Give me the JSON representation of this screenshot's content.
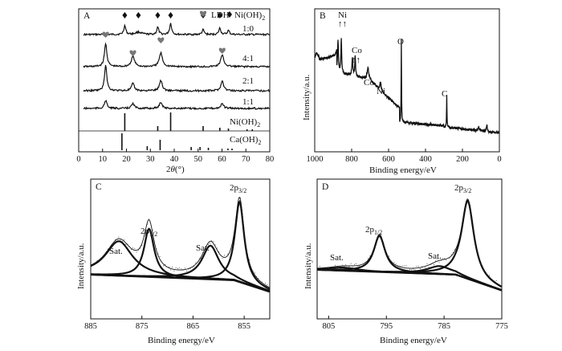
{
  "chart_data": [
    {
      "panel": "A",
      "type": "line",
      "xlabel": "2θ(°)",
      "ylabel": "",
      "xlim": [
        0,
        80
      ],
      "xticks": [
        0,
        10,
        20,
        30,
        40,
        50,
        60,
        70,
        80
      ],
      "legend": [
        {
          "marker": "heart",
          "label": "LDH"
        },
        {
          "marker": "diamond",
          "label": "Ni(OH)2"
        }
      ],
      "series": [
        {
          "name": "1:0",
          "peaks": [
            19.3,
            33.1,
            38.5,
            52.1,
            59.1,
            62.7
          ]
        },
        {
          "name": "4:1",
          "peaks": [
            11.3,
            22.7,
            34.4,
            60.1
          ]
        },
        {
          "name": "2:1",
          "peaks": [
            11.3,
            22.7,
            34.4,
            60.1
          ]
        },
        {
          "name": "1:1",
          "peaks": [
            11.3,
            22.7,
            34.4,
            60.1
          ]
        }
      ],
      "diamond_markers_2theta": [
        19.3,
        25.0,
        33.1,
        38.5,
        52.1,
        59.1
      ],
      "heart_markers_2theta": [
        11.3,
        22.7,
        34.4,
        60.1
      ],
      "references": [
        {
          "name": "Ni(OH)2",
          "sticks": [
            19.3,
            33.1,
            38.5,
            52.1,
            59.1,
            62.7,
            70.5,
            72.7
          ]
        },
        {
          "name": "Ca(OH)2",
          "sticks": [
            18.1,
            28.7,
            34.1,
            47.1,
            50.8,
            54.3,
            62.5,
            64.2
          ]
        }
      ]
    },
    {
      "panel": "B",
      "type": "line",
      "xlabel": "Binding energy/eV",
      "ylabel": "Intensity/a.u.",
      "xlim": [
        1000,
        0
      ],
      "xticks": [
        1000,
        800,
        600,
        400,
        200,
        0
      ],
      "annotations": [
        "Ni",
        "Co",
        "O",
        "Co",
        "Ni",
        "C"
      ],
      "peaks_eV": [
        874,
        856,
        796,
        781,
        712,
        644,
        531,
        285,
        112,
        68
      ]
    },
    {
      "panel": "C",
      "type": "line",
      "xlabel": "Binding energy/eV",
      "ylabel": "Intensity/a.u.",
      "xlim": [
        885,
        850
      ],
      "xticks": [
        885,
        875,
        865,
        855
      ],
      "peaks": [
        {
          "label": "Sat.",
          "eV": 879.5
        },
        {
          "label": "2p1/2",
          "eV": 873.6
        },
        {
          "label": "Sat.",
          "eV": 861.6
        },
        {
          "label": "2p3/2",
          "eV": 855.9
        }
      ]
    },
    {
      "panel": "D",
      "type": "line",
      "xlabel": "Binding energy/eV",
      "ylabel": "Intensity/a.u.",
      "xlim": [
        807,
        775
      ],
      "xticks": [
        805,
        795,
        785,
        775
      ],
      "peaks": [
        {
          "label": "Sat.",
          "eV": 802.5
        },
        {
          "label": "2p1/2",
          "eV": 796.2
        },
        {
          "label": "Sat.",
          "eV": 785.8
        },
        {
          "label": "2p3/2",
          "eV": 780.9
        }
      ]
    }
  ],
  "labels": {
    "panelA": "A",
    "panelB": "B",
    "panelC": "C",
    "panelD": "D",
    "ldh_legend": "LDH",
    "niohh_legend_base": "Ni(OH)",
    "niohh_legend_sub": "2",
    "ratio_10": "1:0",
    "ratio_41": "4:1",
    "ratio_21": "2:1",
    "ratio_11": "1:1",
    "ref_ni_base": "Ni(OH)",
    "ref_ni_sub": "2",
    "ref_ca_base": "Ca(OH)",
    "ref_ca_sub": "2",
    "a_xlabel_2": "2",
    "a_xlabel_theta": "θ",
    "a_xlabel_unit": "(°)",
    "b_ni": "Ni",
    "b_co": "Co",
    "b_o": "O",
    "b_co2": "Co",
    "b_ni2": "Ni",
    "b_c": "C",
    "b_arrows_ni": "↑↑",
    "b_arrows_co": "↑↑",
    "xlabel_be": "Binding energy/eV",
    "ylabel_int": "Intensity/a.u.",
    "c_sat1": "Sat.",
    "c_sat2": "Sat.",
    "d_sat1": "Sat.",
    "d_sat2": "Sat.",
    "p12_p": "2p",
    "p12_sub": "1/2",
    "p32_p": "2p",
    "p32_sub": "3/2"
  }
}
